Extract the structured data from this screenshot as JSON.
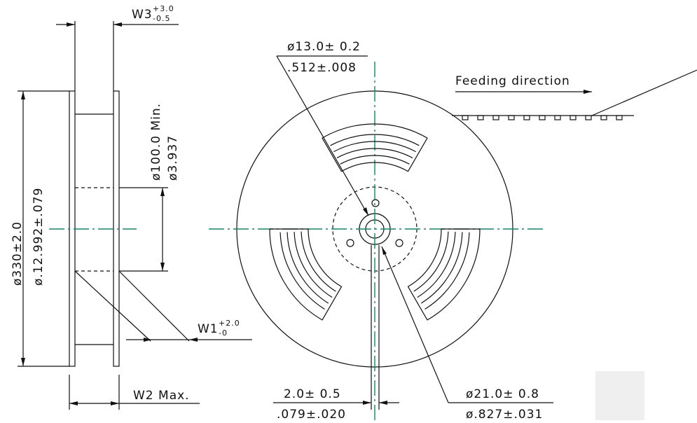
{
  "side_view": {
    "w3": {
      "name": "W3",
      "plus": "+3.0",
      "minus": "-0.5"
    },
    "hub_diameter": {
      "metric": "ø100.0 Min.",
      "inch": "ø3.937"
    },
    "reel_diameter": {
      "metric": "ø330±2.0",
      "inch": "ø.12.992±.079"
    },
    "w1": {
      "name": "W1",
      "plus": "+2.0",
      "minus": "-0"
    },
    "w2": "W2 Max."
  },
  "front_view": {
    "arbor_hole": {
      "metric": "ø13.0± 0.2",
      "inch": ".512±.008"
    },
    "feeding_direction": "Feeding direction",
    "key_slot": {
      "metric": "2.0± 0.5",
      "inch": ".079±.020"
    },
    "hub_ring": {
      "metric": "ø21.0± 0.8",
      "inch": "ø.827±.031"
    }
  }
}
